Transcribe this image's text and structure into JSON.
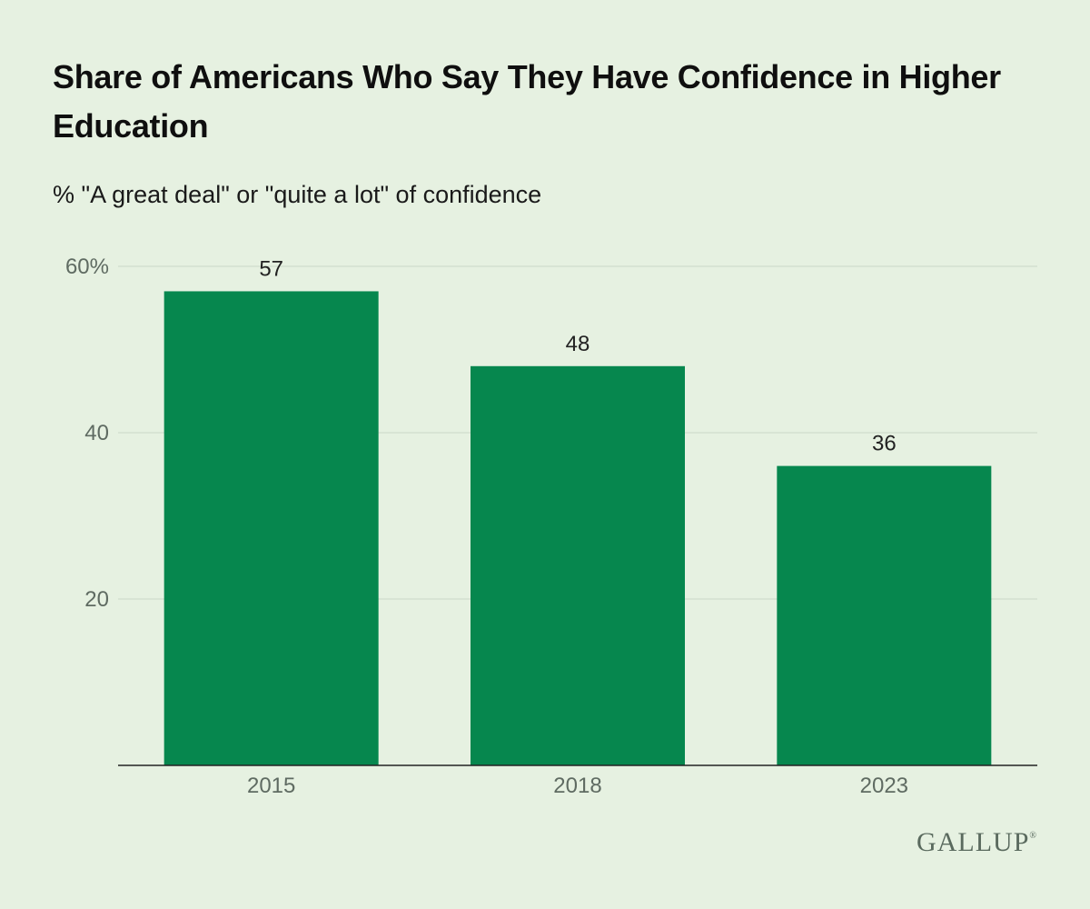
{
  "header": {
    "title": "Share of Americans Who Say They Have Confidence in Higher Education",
    "subtitle": "% \"A great deal\" or \"quite a lot\" of confidence"
  },
  "brand": {
    "name": "GALLUP",
    "mark": "®"
  },
  "colors": {
    "background": "#e6f1e1",
    "bar": "#06874e",
    "gridline": "#c9d6c6",
    "axis": "#222222",
    "tick_text": "#5f6b62",
    "label_text": "#222222"
  },
  "chart_data": {
    "type": "bar",
    "title": "Share of Americans Who Say They Have Confidence in Higher Education",
    "subtitle": "% \"A great deal\" or \"quite a lot\" of confidence",
    "categories": [
      "2015",
      "2018",
      "2023"
    ],
    "values": [
      57,
      48,
      36
    ],
    "data_labels": [
      "57",
      "48",
      "36"
    ],
    "ylim": [
      0,
      60
    ],
    "yticks": [
      20,
      40,
      60
    ],
    "ytick_labels": [
      "20",
      "40",
      "60%"
    ],
    "xlabel": "",
    "ylabel": "",
    "grid": true,
    "legend": "none"
  }
}
